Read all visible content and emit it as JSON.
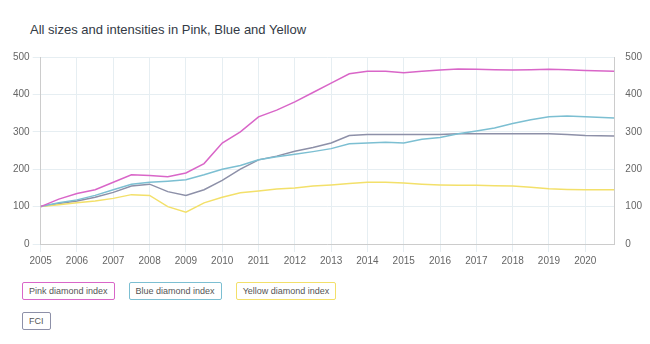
{
  "chart_data": {
    "type": "line",
    "title": "All sizes and intensities in Pink, Blue and Yellow",
    "x": [
      2005,
      2005.5,
      2006,
      2006.5,
      2007,
      2007.5,
      2008,
      2008.5,
      2009,
      2009.5,
      2010,
      2010.5,
      2011,
      2011.5,
      2012,
      2012.5,
      2013,
      2013.5,
      2014,
      2014.5,
      2015,
      2015.5,
      2016,
      2016.5,
      2017,
      2017.5,
      2018,
      2018.5,
      2019,
      2019.5,
      2020,
      2020.8
    ],
    "series": [
      {
        "name": "Pink diamond index",
        "color": "#d966c8",
        "values": [
          100,
          120,
          135,
          145,
          165,
          185,
          183,
          180,
          190,
          215,
          270,
          300,
          340,
          358,
          380,
          405,
          430,
          455,
          462,
          462,
          458,
          462,
          465,
          468,
          467,
          466,
          465,
          466,
          467,
          466,
          464,
          462
        ]
      },
      {
        "name": "Blue diamond index",
        "color": "#7cbfd2",
        "values": [
          100,
          110,
          118,
          130,
          145,
          160,
          165,
          168,
          172,
          185,
          200,
          210,
          225,
          233,
          240,
          247,
          255,
          268,
          270,
          272,
          270,
          280,
          285,
          295,
          302,
          310,
          322,
          332,
          340,
          342,
          340,
          337
        ]
      },
      {
        "name": "Yellow diamond index",
        "color": "#f3e06a",
        "values": [
          100,
          105,
          110,
          115,
          122,
          132,
          130,
          100,
          85,
          110,
          125,
          137,
          142,
          147,
          150,
          155,
          158,
          162,
          165,
          165,
          163,
          160,
          158,
          157,
          157,
          156,
          155,
          152,
          148,
          146,
          145,
          145
        ]
      },
      {
        "name": "FCI",
        "color": "#8d90a8",
        "values": [
          100,
          108,
          115,
          125,
          138,
          155,
          160,
          140,
          130,
          145,
          170,
          200,
          225,
          235,
          248,
          258,
          270,
          290,
          293,
          293,
          293,
          293,
          293,
          295,
          295,
          295,
          295,
          295,
          295,
          293,
          290,
          289
        ]
      }
    ],
    "xlim": [
      2005,
      2020.8
    ],
    "xticks": [
      2005,
      2006,
      2007,
      2008,
      2009,
      2010,
      2011,
      2012,
      2013,
      2014,
      2015,
      2016,
      2017,
      2018,
      2019,
      2020
    ],
    "ylim": [
      0,
      500
    ],
    "yticks": [
      0,
      100,
      200,
      300,
      400,
      500
    ],
    "y2lim": [
      0,
      500
    ],
    "y2ticks": [
      0,
      100,
      200,
      300,
      400,
      500
    ],
    "grid": true,
    "legend": "bottom"
  }
}
